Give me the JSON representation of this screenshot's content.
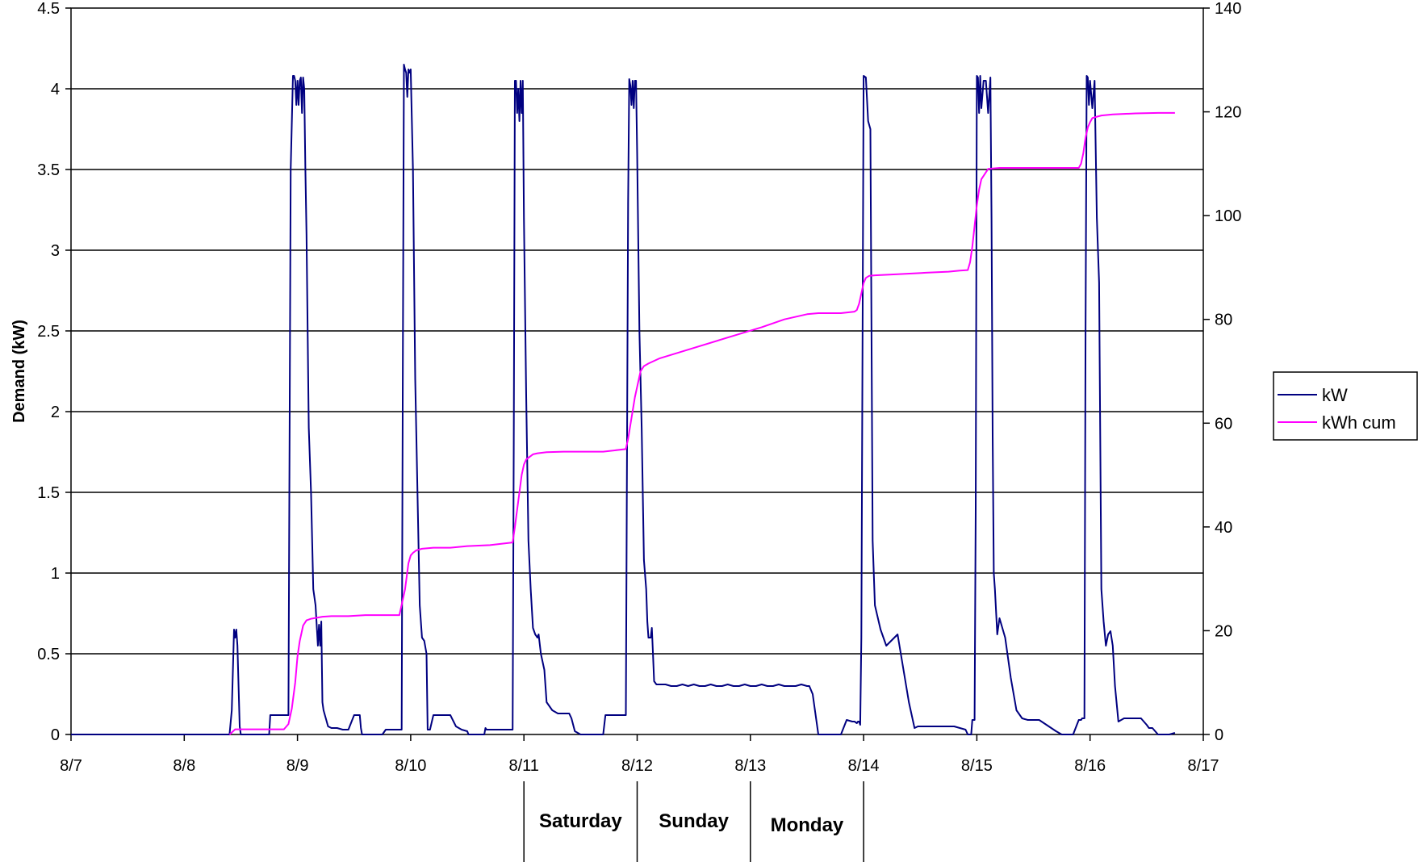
{
  "chart_data": {
    "type": "line",
    "title": "",
    "xlabel": "",
    "ylabel": "Demand (kW)",
    "y2label": "",
    "x_tick_labels": [
      "8/7",
      "8/8",
      "8/9",
      "8/10",
      "8/11",
      "8/12",
      "8/13",
      "8/14",
      "8/15",
      "8/16",
      "8/17"
    ],
    "xlim": [
      0,
      10
    ],
    "ylim": [
      0,
      4.5
    ],
    "y_ticks": [
      0,
      0.5,
      1,
      1.5,
      2,
      2.5,
      3,
      3.5,
      4,
      4.5
    ],
    "y_tick_labels": [
      "0",
      "0.5",
      "1",
      "1.5",
      "2",
      "2.5",
      "3",
      "3.5",
      "4",
      "4.5"
    ],
    "y2lim": [
      0,
      140
    ],
    "y2_ticks": [
      0,
      20,
      40,
      60,
      80,
      100,
      120,
      140
    ],
    "y2_tick_labels": [
      "0",
      "20",
      "40",
      "60",
      "80",
      "100",
      "120",
      "140"
    ],
    "grid": "horizontal",
    "legend_position": "right",
    "colors": {
      "kW": "#000080",
      "kWh cum": "#ff00ff"
    },
    "day_annotations": {
      "labels": [
        "Saturday",
        "Sunday",
        "Monday"
      ],
      "separators_x": [
        4,
        5,
        6,
        7
      ]
    },
    "series": [
      {
        "name": "kW",
        "axis": "left",
        "x": [
          0,
          1.4,
          1.42,
          1.44,
          1.45,
          1.46,
          1.47,
          1.48,
          1.49,
          1.5,
          1.52,
          1.75,
          1.76,
          1.9,
          1.92,
          1.94,
          1.96,
          1.97,
          1.98,
          1.99,
          2.0,
          2.01,
          2.02,
          2.03,
          2.04,
          2.05,
          2.06,
          2.07,
          2.08,
          2.1,
          2.12,
          2.14,
          2.16,
          2.18,
          2.19,
          2.2,
          2.21,
          2.22,
          2.23,
          2.25,
          2.27,
          2.3,
          2.35,
          2.4,
          2.45,
          2.5,
          2.52,
          2.55,
          2.56,
          2.57,
          2.6,
          2.65,
          2.7,
          2.75,
          2.78,
          2.9,
          2.92,
          2.93,
          2.94,
          2.95,
          2.96,
          2.97,
          2.98,
          2.99,
          3.0,
          3.02,
          3.04,
          3.06,
          3.08,
          3.1,
          3.12,
          3.14,
          3.15,
          3.17,
          3.2,
          3.25,
          3.3,
          3.35,
          3.4,
          3.45,
          3.5,
          3.51,
          3.52,
          3.55,
          3.6,
          3.62,
          3.65,
          3.66,
          3.67,
          3.68,
          3.7,
          3.9,
          3.91,
          3.92,
          3.93,
          3.94,
          3.95,
          3.96,
          3.97,
          3.98,
          3.99,
          4.0,
          4.02,
          4.04,
          4.06,
          4.08,
          4.1,
          4.12,
          4.13,
          4.15,
          4.18,
          4.2,
          4.25,
          4.3,
          4.35,
          4.4,
          4.42,
          4.45,
          4.5,
          4.52,
          4.7,
          4.72,
          4.88,
          4.9,
          4.92,
          4.93,
          4.94,
          4.95,
          4.96,
          4.97,
          4.98,
          4.99,
          5.0,
          5.02,
          5.04,
          5.06,
          5.08,
          5.09,
          5.1,
          5.12,
          5.13,
          5.14,
          5.15,
          5.17,
          5.2,
          5.25,
          5.3,
          5.35,
          5.4,
          5.45,
          5.5,
          5.55,
          5.6,
          5.65,
          5.7,
          5.75,
          5.8,
          5.85,
          5.9,
          5.95,
          6.0,
          6.05,
          6.1,
          6.15,
          6.2,
          6.25,
          6.3,
          6.35,
          6.4,
          6.45,
          6.5,
          6.52,
          6.55,
          6.6,
          6.75,
          6.78,
          6.8,
          6.85,
          6.9,
          6.92,
          6.94,
          6.95,
          6.96,
          6.97,
          6.98,
          7.0,
          7.02,
          7.04,
          7.06,
          7.08,
          7.1,
          7.15,
          7.2,
          7.3,
          7.4,
          7.45,
          7.48,
          7.5,
          7.55,
          7.75,
          7.78,
          7.8,
          7.9,
          7.92,
          7.93,
          7.94,
          7.95,
          7.96,
          7.97,
          7.98,
          7.99,
          8.0,
          8.01,
          8.02,
          8.03,
          8.04,
          8.06,
          8.08,
          8.1,
          8.12,
          8.13,
          8.14,
          8.15,
          8.16,
          8.18,
          8.2,
          8.25,
          8.3,
          8.35,
          8.4,
          8.45,
          8.55,
          8.7,
          8.75,
          8.77,
          8.8,
          8.85,
          8.9,
          8.92,
          8.93,
          8.94,
          8.95,
          8.96,
          8.97,
          8.98,
          8.99,
          9.0,
          9.02,
          9.04,
          9.06,
          9.08,
          9.1,
          9.12,
          9.14,
          9.16,
          9.18,
          9.2,
          9.22,
          9.25,
          9.3,
          9.35,
          9.4,
          9.45,
          9.5,
          9.52,
          9.55,
          9.6,
          9.65,
          9.7,
          9.75
        ],
        "y": [
          0,
          0,
          0.15,
          0.65,
          0.6,
          0.65,
          0.55,
          0.3,
          0.05,
          0,
          0,
          0,
          0.12,
          0.12,
          0.12,
          3.5,
          4.08,
          4.08,
          4.05,
          3.9,
          4.05,
          3.9,
          4.05,
          4.07,
          3.85,
          4.07,
          4.0,
          3.5,
          3.1,
          1.9,
          1.5,
          0.9,
          0.8,
          0.55,
          0.68,
          0.55,
          0.7,
          0.2,
          0.15,
          0.1,
          0.05,
          0.04,
          0.04,
          0.03,
          0.03,
          0.12,
          0.12,
          0.12,
          0.04,
          0,
          0,
          0,
          0,
          0,
          0.03,
          0.03,
          0.03,
          2.2,
          4.15,
          4.12,
          4.1,
          3.95,
          4.12,
          4.1,
          4.12,
          3.5,
          2.2,
          1.5,
          0.8,
          0.6,
          0.58,
          0.5,
          0.03,
          0.03,
          0.12,
          0.12,
          0.12,
          0.12,
          0.05,
          0.03,
          0.02,
          0,
          0,
          0,
          0,
          0,
          0,
          0.04,
          0.03,
          0.03,
          0.03,
          0.03,
          1.8,
          4.05,
          4.05,
          3.85,
          4.0,
          3.8,
          4.05,
          3.85,
          4.05,
          3.2,
          2.1,
          1.2,
          0.9,
          0.66,
          0.62,
          0.6,
          0.62,
          0.5,
          0.4,
          0.2,
          0.15,
          0.13,
          0.13,
          0.13,
          0.1,
          0.02,
          0,
          0,
          0,
          0.12,
          0.12,
          0.12,
          3.3,
          4.06,
          4.02,
          3.9,
          4.05,
          3.88,
          4.05,
          4.05,
          3.6,
          2.5,
          1.9,
          1.08,
          0.9,
          0.7,
          0.6,
          0.6,
          0.66,
          0.5,
          0.33,
          0.31,
          0.31,
          0.31,
          0.3,
          0.3,
          0.31,
          0.3,
          0.31,
          0.3,
          0.3,
          0.31,
          0.3,
          0.3,
          0.31,
          0.3,
          0.3,
          0.31,
          0.3,
          0.3,
          0.31,
          0.3,
          0.3,
          0.31,
          0.3,
          0.3,
          0.3,
          0.31,
          0.3,
          0.3,
          0.25,
          0,
          0,
          0,
          0,
          0.09,
          0.08,
          0.08,
          0.07,
          0.08,
          0.08,
          0.06,
          0.6,
          4.08,
          4.07,
          3.8,
          3.75,
          1.2,
          0.8,
          0.65,
          0.55,
          0.62,
          0.2,
          0.04,
          0.05,
          0.05,
          0.05,
          0.05,
          0.05,
          0.05,
          0.03,
          0,
          0,
          0,
          0,
          0.09,
          0.09,
          0.09,
          1.4,
          4.08,
          4.07,
          3.85,
          4.08,
          3.88,
          4.05,
          4.05,
          3.85,
          4.07,
          3.2,
          1.85,
          1.0,
          0.9,
          0.62,
          0.72,
          0.6,
          0.35,
          0.15,
          0.1,
          0.09,
          0.09,
          0.02,
          0,
          0,
          0,
          0,
          0.09,
          0.09,
          0.1,
          0.1,
          0.1,
          2.5,
          4.08,
          4.07,
          3.9,
          4.05,
          3.88,
          4.05,
          3.2,
          2.8,
          0.9,
          0.7,
          0.55,
          0.62,
          0.64,
          0.55,
          0.3,
          0.08,
          0.1,
          0.1,
          0.1,
          0.1,
          0.06,
          0.04,
          0.04,
          0,
          0,
          0,
          0.01
        ]
      },
      {
        "name": "kWh cum",
        "axis": "right",
        "x": [
          1.4,
          1.45,
          1.5,
          1.6,
          1.7,
          1.8,
          1.88,
          1.92,
          1.95,
          1.98,
          2.0,
          2.02,
          2.05,
          2.08,
          2.12,
          2.17,
          2.22,
          2.3,
          2.45,
          2.6,
          2.75,
          2.9,
          2.92,
          2.95,
          2.98,
          3.0,
          3.02,
          3.05,
          3.1,
          3.2,
          3.35,
          3.5,
          3.7,
          3.9,
          3.92,
          3.95,
          3.98,
          4.0,
          4.02,
          4.05,
          4.08,
          4.12,
          4.2,
          4.35,
          4.5,
          4.7,
          4.9,
          4.92,
          4.95,
          4.98,
          5.0,
          5.03,
          5.06,
          5.1,
          5.15,
          5.2,
          5.5,
          5.8,
          6.1,
          6.3,
          6.5,
          6.6,
          6.8,
          6.92,
          6.94,
          6.96,
          6.98,
          7.0,
          7.02,
          7.05,
          7.1,
          7.3,
          7.55,
          7.75,
          7.85,
          7.92,
          7.94,
          7.96,
          7.98,
          8.0,
          8.02,
          8.04,
          8.07,
          8.1,
          8.2,
          8.35,
          8.5,
          8.7,
          8.9,
          8.92,
          8.94,
          8.96,
          8.98,
          9.0,
          9.02,
          9.05,
          9.1,
          9.2,
          9.4,
          9.6,
          9.75
        ],
        "y": [
          0,
          1,
          1,
          1,
          1,
          1,
          1,
          2,
          5,
          10,
          15,
          18,
          21,
          22,
          22.3,
          22.5,
          22.7,
          22.8,
          22.8,
          23,
          23,
          23,
          25,
          28,
          33,
          34.5,
          35,
          35.5,
          35.8,
          36,
          36,
          36.3,
          36.5,
          37,
          40,
          45,
          50,
          52,
          53,
          53.5,
          54,
          54.2,
          54.4,
          54.5,
          54.5,
          54.5,
          55,
          57,
          61,
          65,
          67,
          70,
          71,
          71.5,
          72,
          72.5,
          74.5,
          76.5,
          78.5,
          80,
          81,
          81.2,
          81.2,
          81.5,
          81.8,
          83,
          85,
          87,
          88,
          88.4,
          88.5,
          88.7,
          89,
          89.2,
          89.4,
          89.5,
          91,
          94,
          98,
          102,
          105,
          107,
          108,
          109,
          109.2,
          109.2,
          109.2,
          109.2,
          109.2,
          110,
          112,
          115,
          117,
          118,
          118.8,
          119,
          119.3,
          119.5,
          119.7,
          119.8,
          119.8
        ]
      }
    ]
  }
}
